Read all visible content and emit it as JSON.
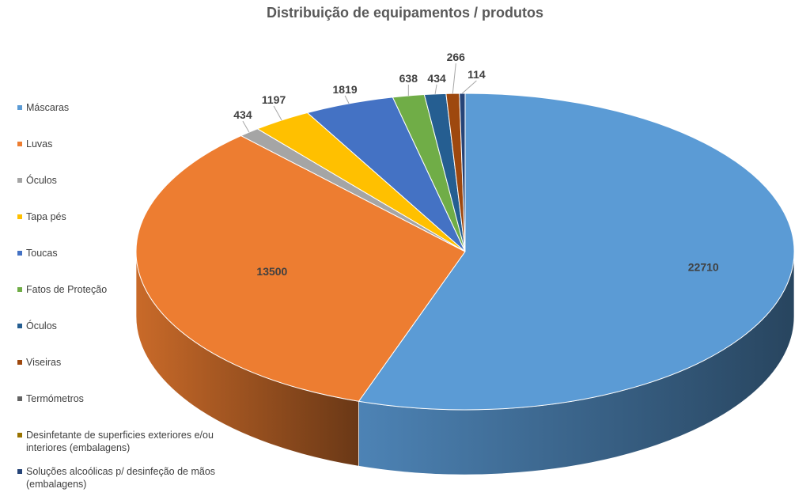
{
  "chart_data": {
    "type": "pie",
    "title": "Distribuição de equipamentos / produtos",
    "legend_position": "left",
    "categories": [
      "Máscaras",
      "Luvas",
      "Óculos",
      "Tapa pés",
      "Toucas",
      "Fatos de Proteção",
      "Óculos",
      "Viseiras",
      "Termómetros",
      "Desinfetante de superficies exteriores e/ou interiores (embalagens)",
      "Soluções alcoólicas p/ desinfeção de mãos (embalagens)"
    ],
    "values": [
      22710,
      13500,
      434,
      1197,
      1819,
      638,
      434,
      266,
      0,
      0,
      114
    ],
    "data_labels": [
      "22710",
      "13500",
      "434",
      "1197",
      "1819",
      "638",
      "434",
      "266",
      "",
      "",
      "114"
    ],
    "colors": [
      "#5B9BD5",
      "#ED7D31",
      "#A5A5A5",
      "#FFC000",
      "#4472C4",
      "#70AD47",
      "#255E91",
      "#9E480E",
      "#636363",
      "#997300",
      "#264478"
    ]
  }
}
